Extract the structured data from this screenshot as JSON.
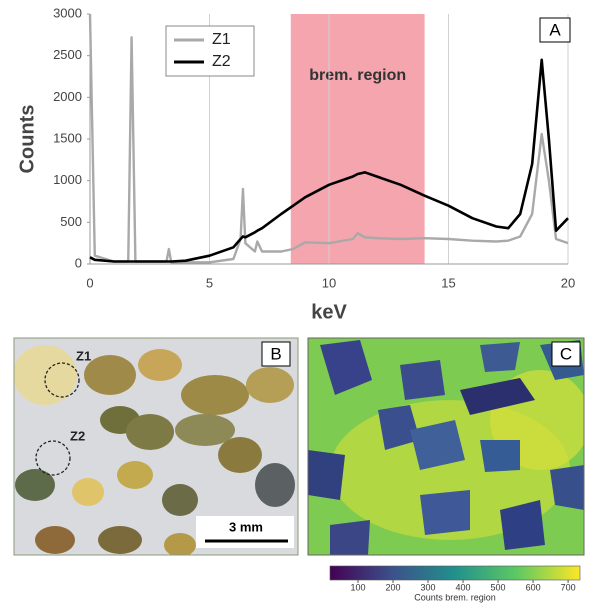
{
  "chart_data": [
    {
      "type": "line",
      "panel": "A",
      "x": [
        0,
        0.2,
        1,
        1.6,
        1.74,
        1.9,
        3.2,
        3.3,
        3.4,
        4,
        5,
        6,
        6.3,
        6.4,
        6.5,
        6.9,
        7,
        7.2,
        8,
        8.5,
        9,
        10,
        11,
        11.2,
        11.5,
        12,
        13,
        14,
        15,
        16,
        17,
        17.5,
        18,
        18.5,
        18.9,
        19.2,
        19.5,
        20
      ],
      "series": [
        {
          "name": "Z1",
          "color": "#a9a9a9",
          "values": [
            3000,
            100,
            30,
            30,
            2720,
            30,
            30,
            180,
            20,
            20,
            20,
            60,
            300,
            900,
            250,
            150,
            270,
            150,
            150,
            180,
            260,
            250,
            300,
            370,
            320,
            310,
            300,
            310,
            300,
            280,
            270,
            280,
            330,
            600,
            1560,
            1000,
            300,
            250
          ]
        },
        {
          "name": "Z2",
          "color": "#000000",
          "values": [
            80,
            50,
            30,
            30,
            30,
            30,
            30,
            30,
            30,
            40,
            100,
            200,
            300,
            330,
            320,
            380,
            400,
            430,
            600,
            700,
            800,
            950,
            1050,
            1080,
            1100,
            1050,
            950,
            820,
            700,
            550,
            450,
            430,
            600,
            1200,
            2450,
            1500,
            400,
            550
          ]
        }
      ],
      "xlim": [
        0,
        20
      ],
      "xticks": [
        0,
        5,
        10,
        15,
        20
      ],
      "ylim": [
        0,
        3000
      ],
      "yticks": [
        0,
        500,
        1000,
        1500,
        2000,
        2500,
        3000
      ],
      "xlabel": "keV",
      "ylabel": "Counts",
      "grid": true,
      "legend": "upper left",
      "highlight": {
        "xmin": 8.4,
        "xmax": 14,
        "label": "brem. region",
        "color": "#f4a5ae"
      }
    },
    {
      "type": "colorbar",
      "xlim": [
        20,
        734
      ],
      "xticks": [
        100,
        200,
        300,
        400,
        500,
        600,
        700
      ],
      "xlabel": "Counts brem. region",
      "colors": [
        "#440154",
        "#3b528b",
        "#21918c",
        "#5ec962",
        "#fde725"
      ]
    }
  ],
  "photo": {
    "panel": "B",
    "zones": [
      "Z1",
      "Z2"
    ],
    "scale_bar": "3 mm"
  },
  "map": {
    "panel": "C"
  }
}
